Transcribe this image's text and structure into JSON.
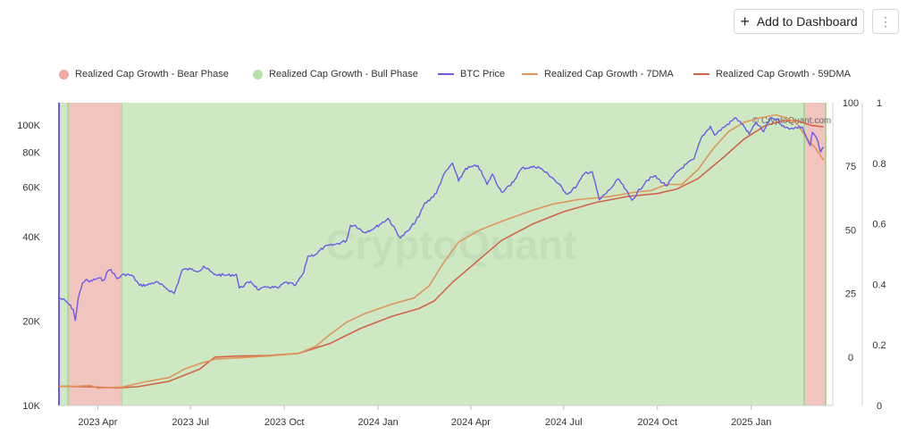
{
  "toolbar": {
    "add_label": "Add to Dashboard",
    "more_label": "⋮"
  },
  "watermark": "CryptoQuant",
  "credit": "© CryptoQuant.com",
  "colors": {
    "bear": "#f2c4bf",
    "bull": "#cde8c3",
    "btc": "#6a5ce6",
    "ma7": "#e0955a",
    "ma59": "#d2644a"
  },
  "chart_data": {
    "type": "line",
    "title": "",
    "legend": [
      {
        "name": "Realized Cap Growth - Bear Phase",
        "kind": "area",
        "color": "#eeaaa3"
      },
      {
        "name": "Realized Cap Growth - Bull Phase",
        "kind": "area",
        "color": "#b9dfa9"
      },
      {
        "name": "BTC Price",
        "kind": "line",
        "color": "#6a5ce6"
      },
      {
        "name": "Realized Cap Growth - 7DMA",
        "kind": "line",
        "color": "#e0955a"
      },
      {
        "name": "Realized Cap Growth - 59DMA",
        "kind": "line",
        "color": "#d2644a"
      }
    ],
    "legend_position": "top",
    "x_range": [
      "2023-02-22",
      "2025-03-15"
    ],
    "x_ticks": [
      {
        "label": "2023 Apr",
        "date": "2023-04-01"
      },
      {
        "label": "2023 Jul",
        "date": "2023-07-01"
      },
      {
        "label": "2023 Oct",
        "date": "2023-10-01"
      },
      {
        "label": "2024 Jan",
        "date": "2024-01-01"
      },
      {
        "label": "2024 Apr",
        "date": "2024-04-01"
      },
      {
        "label": "2024 Jul",
        "date": "2024-07-01"
      },
      {
        "label": "2024 Oct",
        "date": "2024-10-01"
      },
      {
        "label": "2025 Jan",
        "date": "2025-01-01"
      }
    ],
    "y_left": {
      "scale": "log",
      "range": [
        10000,
        120000
      ],
      "ticks": [
        {
          "label": "10K",
          "value": 10000
        },
        {
          "label": "20K",
          "value": 20000
        },
        {
          "label": "40K",
          "value": 40000
        },
        {
          "label": "60K",
          "value": 60000
        },
        {
          "label": "80K",
          "value": 80000
        },
        {
          "label": "100K",
          "value": 100000
        }
      ]
    },
    "y_mid": {
      "range": [
        -19,
        100
      ],
      "ticks": [
        {
          "label": "0",
          "value": 0
        },
        {
          "label": "25",
          "value": 25
        },
        {
          "label": "50",
          "value": 50
        },
        {
          "label": "75",
          "value": 75
        },
        {
          "label": "100",
          "value": 100
        }
      ]
    },
    "y_right": {
      "range": [
        0,
        1
      ],
      "ticks": [
        {
          "label": "0",
          "value": 0
        },
        {
          "label": "0.2",
          "value": 0.2
        },
        {
          "label": "0.4",
          "value": 0.4
        },
        {
          "label": "0.6",
          "value": 0.6
        },
        {
          "label": "0.8",
          "value": 0.8
        },
        {
          "label": "1",
          "value": 1
        }
      ]
    },
    "phases": [
      {
        "phase": "bull",
        "start": "2023-02-22",
        "end": "2023-03-03"
      },
      {
        "phase": "bear",
        "start": "2023-03-03",
        "end": "2023-04-25"
      },
      {
        "phase": "bull",
        "start": "2023-04-25",
        "end": "2025-02-22"
      },
      {
        "phase": "bear",
        "start": "2025-02-22",
        "end": "2025-03-15"
      }
    ],
    "series": [
      {
        "name": "BTC Price",
        "axis": "left",
        "points": [
          [
            "2023-02-22",
            24200
          ],
          [
            "2023-03-01",
            23500
          ],
          [
            "2023-03-08",
            22000
          ],
          [
            "2023-03-10",
            20100
          ],
          [
            "2023-03-13",
            24200
          ],
          [
            "2023-03-17",
            27300
          ],
          [
            "2023-03-20",
            28000
          ],
          [
            "2023-03-24",
            27600
          ],
          [
            "2023-04-01",
            28400
          ],
          [
            "2023-04-07",
            28000
          ],
          [
            "2023-04-11",
            30200
          ],
          [
            "2023-04-14",
            30500
          ],
          [
            "2023-04-20",
            28300
          ],
          [
            "2023-04-27",
            29400
          ],
          [
            "2023-05-05",
            29000
          ],
          [
            "2023-05-12",
            26800
          ],
          [
            "2023-05-20",
            26900
          ],
          [
            "2023-05-28",
            27600
          ],
          [
            "2023-06-05",
            26500
          ],
          [
            "2023-06-15",
            25100
          ],
          [
            "2023-06-20",
            28300
          ],
          [
            "2023-06-23",
            30500
          ],
          [
            "2023-07-01",
            30600
          ],
          [
            "2023-07-10",
            30200
          ],
          [
            "2023-07-14",
            31400
          ],
          [
            "2023-07-24",
            29300
          ],
          [
            "2023-08-05",
            29100
          ],
          [
            "2023-08-15",
            29300
          ],
          [
            "2023-08-18",
            26200
          ],
          [
            "2023-08-29",
            27700
          ],
          [
            "2023-09-06",
            25800
          ],
          [
            "2023-09-15",
            26500
          ],
          [
            "2023-09-25",
            26200
          ],
          [
            "2023-10-02",
            27500
          ],
          [
            "2023-10-12",
            26800
          ],
          [
            "2023-10-20",
            29700
          ],
          [
            "2023-10-24",
            34000
          ],
          [
            "2023-11-01",
            34600
          ],
          [
            "2023-11-09",
            36700
          ],
          [
            "2023-11-20",
            37500
          ],
          [
            "2023-12-01",
            38700
          ],
          [
            "2023-12-05",
            43900
          ],
          [
            "2023-12-10",
            43800
          ],
          [
            "2023-12-18",
            41400
          ],
          [
            "2023-12-28",
            42800
          ],
          [
            "2024-01-11",
            46400
          ],
          [
            "2024-01-23",
            39500
          ],
          [
            "2024-02-01",
            42500
          ],
          [
            "2024-02-10",
            47100
          ],
          [
            "2024-02-15",
            52000
          ],
          [
            "2024-02-27",
            57000
          ],
          [
            "2024-03-05",
            66000
          ],
          [
            "2024-03-14",
            73100
          ],
          [
            "2024-03-20",
            63000
          ],
          [
            "2024-03-27",
            70000
          ],
          [
            "2024-04-08",
            71600
          ],
          [
            "2024-04-17",
            61300
          ],
          [
            "2024-04-22",
            66800
          ],
          [
            "2024-05-01",
            57700
          ],
          [
            "2024-05-10",
            60800
          ],
          [
            "2024-05-21",
            70100
          ],
          [
            "2024-06-06",
            71000
          ],
          [
            "2024-06-20",
            64900
          ],
          [
            "2024-07-05",
            56600
          ],
          [
            "2024-07-14",
            60800
          ],
          [
            "2024-07-22",
            67500
          ],
          [
            "2024-07-29",
            68200
          ],
          [
            "2024-08-05",
            54000
          ],
          [
            "2024-08-15",
            58700
          ],
          [
            "2024-08-24",
            64200
          ],
          [
            "2024-09-06",
            53900
          ],
          [
            "2024-09-20",
            63200
          ],
          [
            "2024-09-28",
            65800
          ],
          [
            "2024-10-10",
            60600
          ],
          [
            "2024-10-21",
            68400
          ],
          [
            "2024-10-29",
            72300
          ],
          [
            "2024-11-06",
            75600
          ],
          [
            "2024-11-13",
            90000
          ],
          [
            "2024-11-22",
            98900
          ],
          [
            "2024-11-26",
            92000
          ],
          [
            "2024-12-05",
            98000
          ],
          [
            "2024-12-17",
            106100
          ],
          [
            "2024-12-25",
            98700
          ],
          [
            "2024-12-30",
            92700
          ],
          [
            "2025-01-06",
            102000
          ],
          [
            "2025-01-13",
            94500
          ],
          [
            "2025-01-20",
            106100
          ],
          [
            "2025-01-26",
            104700
          ],
          [
            "2025-02-03",
            97700
          ],
          [
            "2025-02-10",
            97400
          ],
          [
            "2025-02-20",
            98400
          ],
          [
            "2025-02-25",
            88700
          ],
          [
            "2025-02-28",
            84400
          ],
          [
            "2025-03-02",
            94200
          ],
          [
            "2025-03-06",
            90000
          ],
          [
            "2025-03-10",
            80000
          ],
          [
            "2025-03-13",
            83500
          ]
        ]
      },
      {
        "name": "Realized Cap Growth - 7DMA",
        "axis": "right",
        "points": [
          [
            "2023-02-22",
            0.064
          ],
          [
            "2023-03-10",
            0.063
          ],
          [
            "2023-03-25",
            0.066
          ],
          [
            "2023-04-01",
            0.057
          ],
          [
            "2023-04-10",
            0.059
          ],
          [
            "2023-04-25",
            0.061
          ],
          [
            "2023-05-20",
            0.08
          ],
          [
            "2023-06-10",
            0.092
          ],
          [
            "2023-06-25",
            0.12
          ],
          [
            "2023-07-10",
            0.138
          ],
          [
            "2023-07-25",
            0.153
          ],
          [
            "2023-08-15",
            0.157
          ],
          [
            "2023-09-15",
            0.163
          ],
          [
            "2023-10-15",
            0.172
          ],
          [
            "2023-11-01",
            0.196
          ],
          [
            "2023-11-15",
            0.235
          ],
          [
            "2023-12-01",
            0.275
          ],
          [
            "2023-12-20",
            0.305
          ],
          [
            "2024-01-15",
            0.335
          ],
          [
            "2024-02-05",
            0.355
          ],
          [
            "2024-02-20",
            0.395
          ],
          [
            "2024-03-05",
            0.47
          ],
          [
            "2024-03-20",
            0.54
          ],
          [
            "2024-04-10",
            0.58
          ],
          [
            "2024-05-01",
            0.608
          ],
          [
            "2024-06-01",
            0.645
          ],
          [
            "2024-06-20",
            0.665
          ],
          [
            "2024-07-15",
            0.68
          ],
          [
            "2024-08-15",
            0.69
          ],
          [
            "2024-09-10",
            0.705
          ],
          [
            "2024-09-25",
            0.71
          ],
          [
            "2024-10-10",
            0.73
          ],
          [
            "2024-10-25",
            0.73
          ],
          [
            "2024-11-10",
            0.78
          ],
          [
            "2024-11-25",
            0.85
          ],
          [
            "2024-12-10",
            0.905
          ],
          [
            "2024-12-25",
            0.935
          ],
          [
            "2025-01-10",
            0.95
          ],
          [
            "2025-01-25",
            0.96
          ],
          [
            "2025-02-05",
            0.95
          ],
          [
            "2025-02-15",
            0.93
          ],
          [
            "2025-02-25",
            0.88
          ],
          [
            "2025-03-05",
            0.85
          ],
          [
            "2025-03-13",
            0.81
          ]
        ]
      },
      {
        "name": "Realized Cap Growth - 59DMA",
        "axis": "right",
        "points": [
          [
            "2023-02-22",
            0.063
          ],
          [
            "2023-03-20",
            0.062
          ],
          [
            "2023-04-20",
            0.058
          ],
          [
            "2023-05-10",
            0.062
          ],
          [
            "2023-06-10",
            0.08
          ],
          [
            "2023-07-10",
            0.12
          ],
          [
            "2023-07-25",
            0.16
          ],
          [
            "2023-08-15",
            0.163
          ],
          [
            "2023-09-15",
            0.165
          ],
          [
            "2023-10-15",
            0.172
          ],
          [
            "2023-11-15",
            0.205
          ],
          [
            "2023-12-15",
            0.255
          ],
          [
            "2024-01-15",
            0.295
          ],
          [
            "2024-02-10",
            0.32
          ],
          [
            "2024-02-25",
            0.345
          ],
          [
            "2024-03-15",
            0.41
          ],
          [
            "2024-04-05",
            0.47
          ],
          [
            "2024-05-01",
            0.545
          ],
          [
            "2024-06-01",
            0.6
          ],
          [
            "2024-07-01",
            0.64
          ],
          [
            "2024-08-01",
            0.67
          ],
          [
            "2024-09-01",
            0.69
          ],
          [
            "2024-10-01",
            0.7
          ],
          [
            "2024-10-20",
            0.715
          ],
          [
            "2024-11-10",
            0.75
          ],
          [
            "2024-12-05",
            0.82
          ],
          [
            "2024-12-25",
            0.88
          ],
          [
            "2025-01-15",
            0.925
          ],
          [
            "2025-02-01",
            0.94
          ],
          [
            "2025-02-15",
            0.94
          ],
          [
            "2025-03-01",
            0.925
          ],
          [
            "2025-03-13",
            0.92
          ]
        ]
      }
    ]
  }
}
